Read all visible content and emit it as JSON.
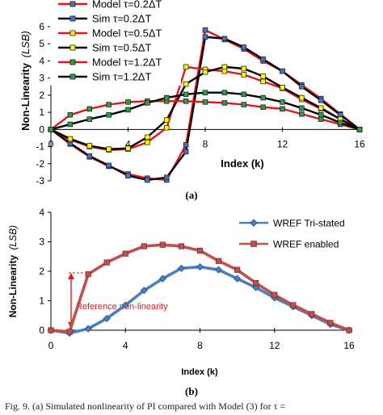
{
  "chart_data": [
    {
      "type": "line",
      "panel_label": "(a)",
      "xlabel": "Index (k)",
      "ylabel": "Non-Linearity",
      "ylabel_unit": "(LSB)",
      "xlim": [
        0,
        16
      ],
      "ylim": [
        -3,
        6
      ],
      "xticks": [
        0,
        4,
        8,
        12,
        16
      ],
      "yticks": [
        -3,
        -2,
        -1,
        0,
        1,
        2,
        3,
        4,
        5,
        6
      ],
      "grid": false,
      "legend_position": "top-left",
      "series": [
        {
          "name": "Model τ=0.2ΔT",
          "color": "#e8141c",
          "marker_fill": "#4472c4",
          "x": [
            0,
            1,
            2,
            3,
            4,
            5,
            6,
            7,
            8,
            9,
            10,
            11,
            12,
            13,
            14,
            15,
            16
          ],
          "values": [
            0,
            -0.85,
            -1.6,
            -2.15,
            -2.6,
            -2.85,
            -2.95,
            -0.9,
            5.8,
            5.25,
            4.7,
            4.0,
            3.4,
            2.6,
            1.8,
            0.9,
            0
          ]
        },
        {
          "name": "Sim τ=0.2ΔT",
          "color": "#000000",
          "marker_fill": "#4472c4",
          "x": [
            0,
            1,
            2,
            3,
            4,
            5,
            6,
            7,
            8,
            9,
            10,
            11,
            12,
            13,
            14,
            15,
            16
          ],
          "values": [
            0,
            -0.8,
            -1.55,
            -2.1,
            -2.7,
            -2.95,
            -2.8,
            -1.3,
            5.4,
            5.3,
            4.8,
            4.1,
            3.4,
            2.5,
            1.7,
            0.85,
            0
          ]
        },
        {
          "name": "Model τ=0.5ΔT",
          "color": "#e8141c",
          "marker_fill": "#ffff00",
          "x": [
            0,
            1,
            2,
            3,
            4,
            5,
            6,
            7,
            8,
            9,
            10,
            11,
            12,
            13,
            14,
            15,
            16
          ],
          "values": [
            0,
            -0.6,
            -1.0,
            -1.2,
            -1.15,
            -0.75,
            0.1,
            3.65,
            3.5,
            3.4,
            3.2,
            2.8,
            2.4,
            1.75,
            1.2,
            0.6,
            0
          ]
        },
        {
          "name": "Sim τ=0.5ΔT",
          "color": "#000000",
          "marker_fill": "#ffff00",
          "x": [
            0,
            1,
            2,
            3,
            4,
            5,
            6,
            7,
            8,
            9,
            10,
            11,
            12,
            13,
            14,
            15,
            16
          ],
          "values": [
            0,
            -0.55,
            -0.95,
            -1.15,
            -1.1,
            -0.45,
            0.55,
            2.65,
            3.35,
            3.65,
            3.55,
            3.1,
            2.45,
            1.85,
            1.25,
            0.6,
            0
          ]
        },
        {
          "name": "Model τ=1.2ΔT",
          "color": "#e8141c",
          "marker_fill": "#2e9c4a",
          "x": [
            0,
            1,
            2,
            3,
            4,
            5,
            6,
            7,
            8,
            9,
            10,
            11,
            12,
            13,
            14,
            15,
            16
          ],
          "values": [
            0,
            0.85,
            1.2,
            1.45,
            1.6,
            1.65,
            1.65,
            1.65,
            1.6,
            1.55,
            1.45,
            1.3,
            1.2,
            0.9,
            0.6,
            0.3,
            0
          ]
        },
        {
          "name": "Sim τ=1.2ΔT",
          "color": "#000000",
          "marker_fill": "#2e9c4a",
          "x": [
            0,
            1,
            2,
            3,
            4,
            5,
            6,
            7,
            8,
            9,
            10,
            11,
            12,
            13,
            14,
            15,
            16
          ],
          "values": [
            0,
            0.3,
            0.6,
            0.85,
            1.15,
            1.55,
            1.85,
            2.05,
            2.15,
            2.15,
            2.05,
            1.85,
            1.6,
            1.25,
            0.85,
            0.4,
            0
          ]
        }
      ]
    },
    {
      "type": "line",
      "panel_label": "(b)",
      "xlabel": "Index (k)",
      "ylabel": "Non-Linearity",
      "ylabel_unit": "(LSB)",
      "xlim": [
        0,
        16
      ],
      "ylim": [
        0,
        4
      ],
      "xticks": [
        0,
        4,
        8,
        12,
        16
      ],
      "yticks": [
        0,
        1,
        2,
        3,
        4
      ],
      "grid": false,
      "legend_position": "top-right",
      "annotation": "Reference non-linearity",
      "series": [
        {
          "name": "WREF Tri-stated",
          "color": "#4a7fc1",
          "marker": "diamond",
          "marker_fill": "#4a7fc1",
          "x": [
            0,
            1,
            2,
            3,
            4,
            5,
            6,
            7,
            8,
            9,
            10,
            11,
            12,
            13,
            14,
            15,
            16
          ],
          "values": [
            0,
            -0.1,
            0.05,
            0.4,
            0.85,
            1.35,
            1.75,
            2.1,
            2.15,
            2.05,
            1.75,
            1.45,
            1.1,
            0.8,
            0.5,
            0.2,
            0
          ]
        },
        {
          "name": "WREF enabled",
          "color": "#c0504d",
          "marker": "square",
          "marker_fill": "#c0504d",
          "x": [
            0,
            1,
            2,
            3,
            4,
            5,
            6,
            7,
            8,
            9,
            10,
            11,
            12,
            13,
            14,
            15,
            16
          ],
          "values": [
            0,
            -0.05,
            1.9,
            2.3,
            2.6,
            2.85,
            2.9,
            2.85,
            2.7,
            2.35,
            2.05,
            1.6,
            1.2,
            0.85,
            0.55,
            0.25,
            0
          ]
        }
      ]
    }
  ],
  "caption": "Fig. 9.   (a) Simulated nonlinearity of PI compared with Model (3) for τ ="
}
